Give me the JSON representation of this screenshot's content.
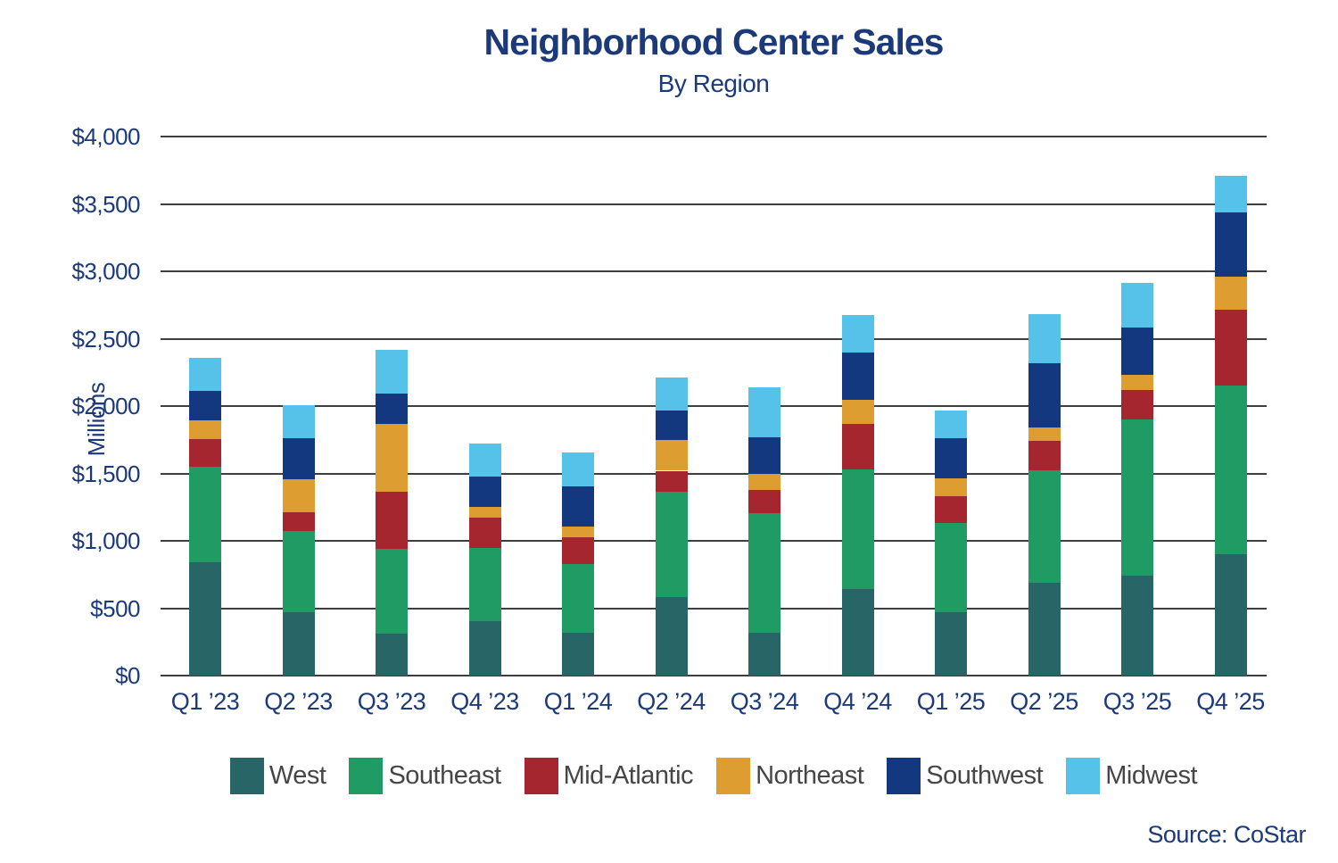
{
  "header": {
    "title": "Neighborhood Center Sales",
    "subtitle": "By Region"
  },
  "source_note": "Source: CoStar",
  "y_axis": {
    "label": "Millions",
    "ticks": [
      "$4,000",
      "$3,500",
      "$3,000",
      "$2,500",
      "$2,000",
      "$1,500",
      "$1,000",
      "$500",
      "$0"
    ]
  },
  "colors": {
    "title_text": "#1c3a7a",
    "axis_text": "#1c3a7a",
    "legend_text": "#464646",
    "gridline": "#3e3e3e",
    "background": "#ffffff"
  },
  "chart_data": {
    "type": "bar",
    "stacked": true,
    "title": "Neighborhood Center Sales",
    "subtitle": "By Region",
    "ylabel": "Millions",
    "ylim": [
      0,
      4000
    ],
    "ytick_step": 500,
    "grid": true,
    "legend_position": "bottom",
    "categories": [
      "Q1 ’23",
      "Q2 ’23",
      "Q3 ’23",
      "Q4 ’23",
      "Q1 ’24",
      "Q2 ’24",
      "Q3 ’24",
      "Q4 ’24",
      "Q1 ’25",
      "Q2 ’25",
      "Q3 ’25",
      "Q4 ’25"
    ],
    "series": [
      {
        "name": "West",
        "color": "#276567",
        "values": [
          840,
          470,
          310,
          405,
          315,
          580,
          315,
          640,
          470,
          690,
          740,
          900
        ]
      },
      {
        "name": "Southeast",
        "color": "#1f9b63",
        "values": [
          710,
          600,
          630,
          540,
          510,
          785,
          890,
          890,
          660,
          830,
          1160,
          1255
        ]
      },
      {
        "name": "Mid-Atlantic",
        "color": "#a5262e",
        "values": [
          205,
          145,
          425,
          230,
          200,
          155,
          175,
          340,
          200,
          225,
          220,
          560
        ]
      },
      {
        "name": "Northeast",
        "color": "#dd9d30",
        "values": [
          140,
          245,
          505,
          80,
          80,
          230,
          115,
          175,
          135,
          95,
          110,
          245
        ]
      },
      {
        "name": "Southwest",
        "color": "#14387f",
        "values": [
          220,
          305,
          225,
          220,
          300,
          220,
          275,
          355,
          295,
          475,
          350,
          480
        ]
      },
      {
        "name": "Midwest",
        "color": "#56c2ea",
        "values": [
          240,
          245,
          325,
          250,
          250,
          245,
          370,
          275,
          205,
          365,
          335,
          270
        ]
      }
    ],
    "totals": [
      2355,
      2010,
      2420,
      1725,
      1655,
      2215,
      2140,
      2675,
      1965,
      2680,
      2915,
      3710
    ]
  }
}
